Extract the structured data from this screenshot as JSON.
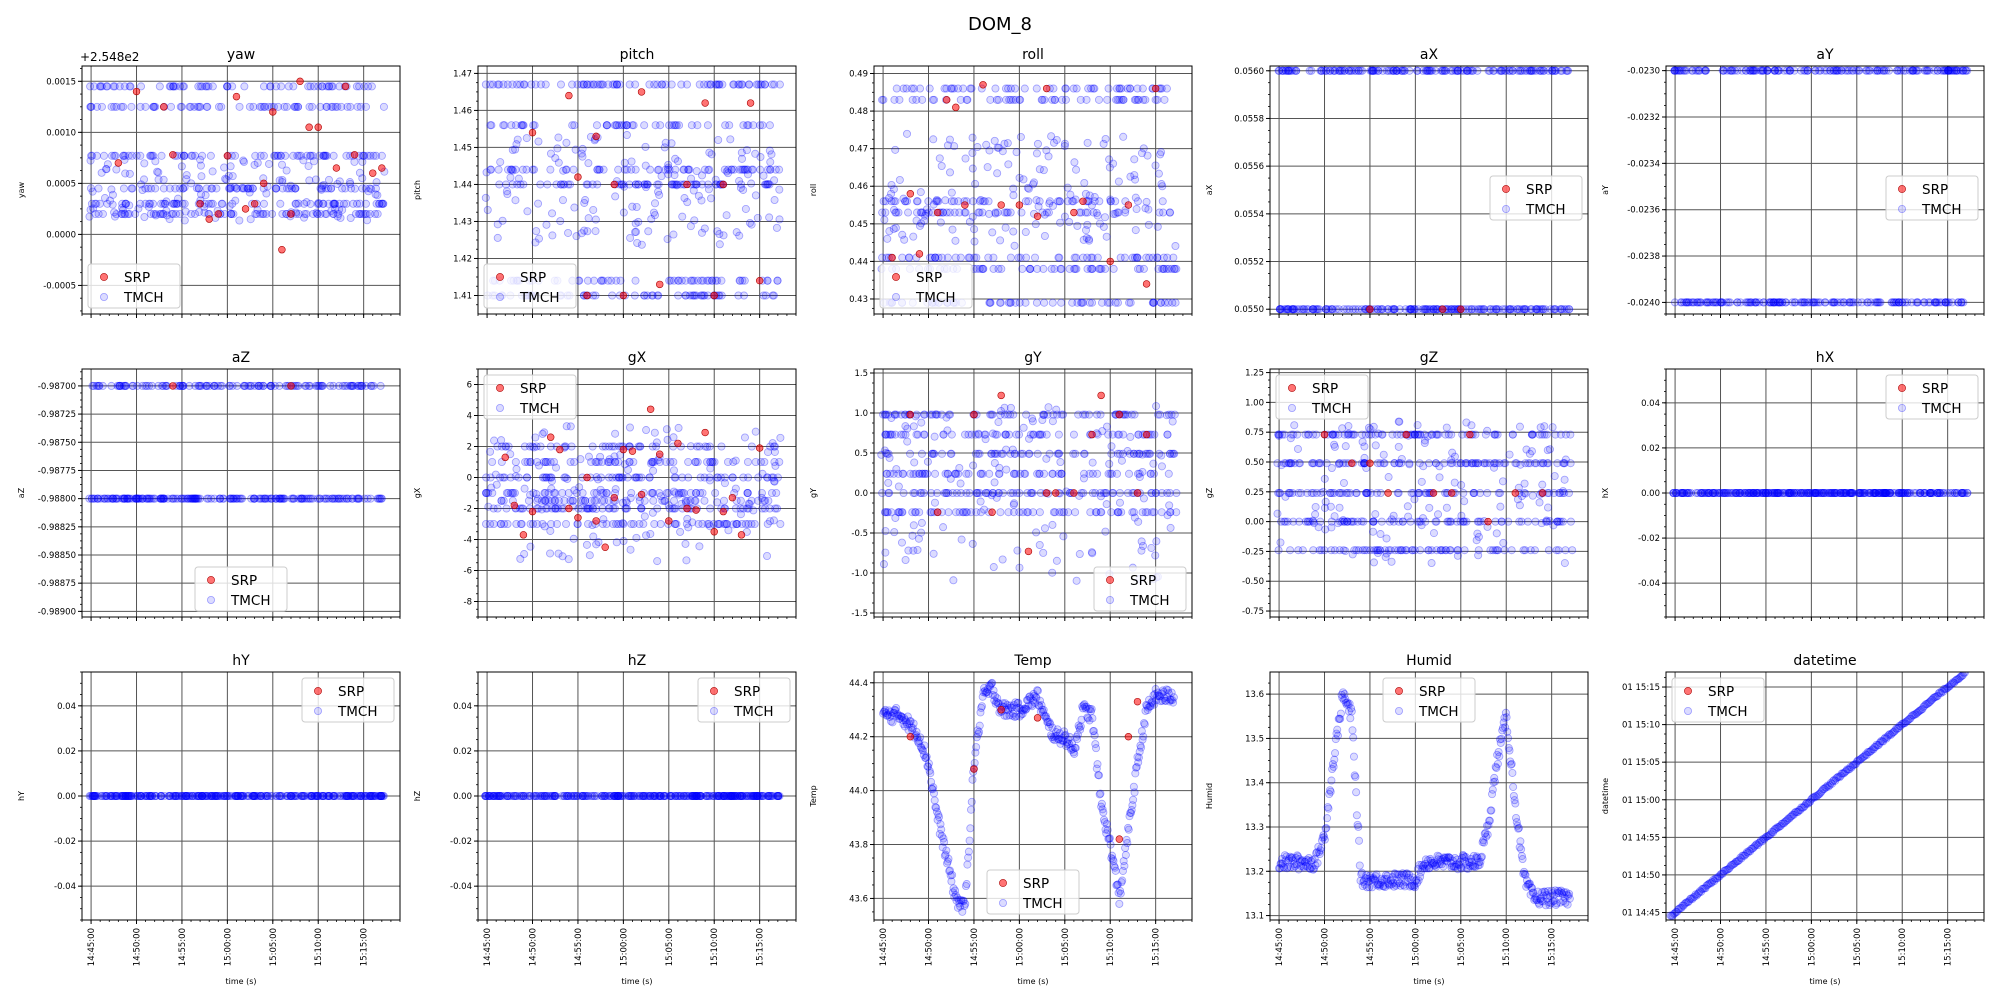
{
  "figure": {
    "title": "DOM_8"
  },
  "legend_labels": {
    "srp": "SRP",
    "tmch": "TMCH"
  },
  "colors": {
    "srp": "#ff0000",
    "tmch": "#0000ff",
    "grid": "#555555",
    "axis": "#000000"
  },
  "chart_data": [
    {
      "type": "scatter",
      "title": "yaw",
      "ylabel": "yaw",
      "ylim": [
        -0.00078,
        0.00165
      ],
      "yticks": [
        "-0.0005",
        "0.0000",
        "0.0005",
        "0.0010",
        "0.0015"
      ],
      "ytickvals": [
        -0.0005,
        0,
        0.0005,
        0.001,
        0.0015
      ],
      "offset_label": "+2.548e2",
      "legend": "lower-left",
      "levels": [
        0.00145,
        0.00125,
        0.00077,
        0.00045,
        0.0003,
        0.0002
      ],
      "noise": 0.0006,
      "srp": [
        {
          "x": 3,
          "y": 0.0007
        },
        {
          "x": 5,
          "y": 0.0014
        },
        {
          "x": 8,
          "y": 0.00125
        },
        {
          "x": 9,
          "y": 0.00078
        },
        {
          "x": 12,
          "y": 0.0003
        },
        {
          "x": 13,
          "y": 0.00015
        },
        {
          "x": 14,
          "y": 0.0002
        },
        {
          "x": 15,
          "y": 0.00077
        },
        {
          "x": 16,
          "y": 0.00135
        },
        {
          "x": 17,
          "y": 0.00025
        },
        {
          "x": 18,
          "y": 0.0003
        },
        {
          "x": 19,
          "y": 0.0005
        },
        {
          "x": 20,
          "y": 0.0012
        },
        {
          "x": 21,
          "y": -0.00015
        },
        {
          "x": 22,
          "y": 0.0002
        },
        {
          "x": 23,
          "y": 0.0015
        },
        {
          "x": 24,
          "y": 0.00105
        },
        {
          "x": 25,
          "y": 0.00105
        },
        {
          "x": 27,
          "y": 0.00065
        },
        {
          "x": 28,
          "y": 0.00145
        },
        {
          "x": 29,
          "y": 0.00078
        },
        {
          "x": 31,
          "y": 0.0006
        },
        {
          "x": 32,
          "y": 0.00065
        }
      ]
    },
    {
      "type": "scatter",
      "title": "pitch",
      "ylabel": "pitch",
      "ylim": [
        1.405,
        1.472
      ],
      "yticks": [
        "1.41",
        "1.42",
        "1.43",
        "1.44",
        "1.45",
        "1.46",
        "1.47"
      ],
      "ytickvals": [
        1.41,
        1.42,
        1.43,
        1.44,
        1.45,
        1.46,
        1.47
      ],
      "legend": "lower-left",
      "levels": [
        1.467,
        1.456,
        1.444,
        1.44,
        1.414,
        1.41
      ],
      "noise": 0.03,
      "srp": [
        {
          "x": 5,
          "y": 1.454
        },
        {
          "x": 9,
          "y": 1.464
        },
        {
          "x": 10,
          "y": 1.442
        },
        {
          "x": 11,
          "y": 1.41
        },
        {
          "x": 12,
          "y": 1.453
        },
        {
          "x": 14,
          "y": 1.44
        },
        {
          "x": 15,
          "y": 1.41
        },
        {
          "x": 17,
          "y": 1.465
        },
        {
          "x": 19,
          "y": 1.413
        },
        {
          "x": 22,
          "y": 1.44
        },
        {
          "x": 24,
          "y": 1.462
        },
        {
          "x": 25,
          "y": 1.41
        },
        {
          "x": 26,
          "y": 1.44
        },
        {
          "x": 29,
          "y": 1.462
        },
        {
          "x": 30,
          "y": 1.414
        }
      ]
    },
    {
      "type": "scatter",
      "title": "roll",
      "ylabel": "roll",
      "ylim": [
        0.426,
        0.492
      ],
      "yticks": [
        "0.43",
        "0.44",
        "0.45",
        "0.46",
        "0.47",
        "0.48",
        "0.49"
      ],
      "ytickvals": [
        0.43,
        0.44,
        0.45,
        0.46,
        0.47,
        0.48,
        0.49
      ],
      "legend": "lower-left",
      "levels": [
        0.486,
        0.483,
        0.456,
        0.453,
        0.441,
        0.438,
        0.429
      ],
      "noise": 0.03,
      "srp": [
        {
          "x": 1,
          "y": 0.441
        },
        {
          "x": 3,
          "y": 0.458
        },
        {
          "x": 4,
          "y": 0.442
        },
        {
          "x": 6,
          "y": 0.453
        },
        {
          "x": 7,
          "y": 0.483
        },
        {
          "x": 8,
          "y": 0.481
        },
        {
          "x": 9,
          "y": 0.455
        },
        {
          "x": 11,
          "y": 0.487
        },
        {
          "x": 13,
          "y": 0.455
        },
        {
          "x": 15,
          "y": 0.455
        },
        {
          "x": 17,
          "y": 0.452
        },
        {
          "x": 18,
          "y": 0.486
        },
        {
          "x": 21,
          "y": 0.453
        },
        {
          "x": 22,
          "y": 0.456
        },
        {
          "x": 25,
          "y": 0.44
        },
        {
          "x": 27,
          "y": 0.455
        },
        {
          "x": 29,
          "y": 0.434
        },
        {
          "x": 30,
          "y": 0.486
        }
      ]
    },
    {
      "type": "scatter",
      "title": "aX",
      "ylabel": "aX",
      "ylim": [
        0.05498,
        0.05602
      ],
      "yticks": [
        "0.0550",
        "0.0552",
        "0.0554",
        "0.0556",
        "0.0558",
        "0.0560"
      ],
      "ytickvals": [
        0.055,
        0.0552,
        0.0554,
        0.0556,
        0.0558,
        0.056
      ],
      "legend": "right",
      "levels": [
        0.056,
        0.055
      ],
      "noise": 0,
      "srp": [
        {
          "x": 10,
          "y": 0.055
        },
        {
          "x": 18,
          "y": 0.055
        },
        {
          "x": 20,
          "y": 0.055
        }
      ]
    },
    {
      "type": "scatter",
      "title": "aY",
      "ylabel": "aY",
      "ylim": [
        -0.02405,
        -0.02298
      ],
      "yticks": [
        "-0.0240",
        "-0.0238",
        "-0.0236",
        "-0.0234",
        "-0.0232",
        "-0.0230"
      ],
      "ytickvals": [
        -0.024,
        -0.0238,
        -0.0236,
        -0.0234,
        -0.0232,
        -0.023
      ],
      "legend": "right",
      "levels": [
        -0.023,
        -0.024
      ],
      "noise": 0,
      "srp": []
    },
    {
      "type": "scatter",
      "title": "aZ",
      "ylabel": "aZ",
      "ylim": [
        -0.98905,
        -0.98685
      ],
      "yticks": [
        "-0.98900",
        "-0.98875",
        "-0.98850",
        "-0.98825",
        "-0.98800",
        "-0.98775",
        "-0.98750",
        "-0.98725",
        "-0.98700"
      ],
      "ytickvals": [
        -0.989,
        -0.98875,
        -0.9885,
        -0.98825,
        -0.988,
        -0.98775,
        -0.9875,
        -0.98725,
        -0.987
      ],
      "legend": "lower-center",
      "levels": [
        -0.987,
        -0.988,
        -0.988
      ],
      "noise": 0,
      "srp": [
        {
          "x": 9,
          "y": -0.987
        },
        {
          "x": 22,
          "y": -0.987
        }
      ]
    },
    {
      "type": "scatter",
      "title": "gX",
      "ylabel": "gX",
      "ylim": [
        -9,
        7
      ],
      "yticks": [
        "-8",
        "-6",
        "-4",
        "-2",
        "0",
        "2",
        "4",
        "6"
      ],
      "ytickvals": [
        -8,
        -6,
        -4,
        -2,
        0,
        2,
        4,
        6
      ],
      "legend": "upper-left",
      "levels": [
        2,
        1,
        0,
        -1,
        -2,
        -3,
        -1.5
      ],
      "noise": 9,
      "srp": [
        {
          "x": 2,
          "y": 1.3
        },
        {
          "x": 3,
          "y": -1.8
        },
        {
          "x": 4,
          "y": -3.7
        },
        {
          "x": 5,
          "y": -2.2
        },
        {
          "x": 7,
          "y": 2.6
        },
        {
          "x": 8,
          "y": 1.8
        },
        {
          "x": 9,
          "y": -2
        },
        {
          "x": 10,
          "y": -2.6
        },
        {
          "x": 11,
          "y": 0
        },
        {
          "x": 12,
          "y": -2.8
        },
        {
          "x": 13,
          "y": -4.5
        },
        {
          "x": 14,
          "y": -1.3
        },
        {
          "x": 15,
          "y": 1.8
        },
        {
          "x": 16,
          "y": 1.7
        },
        {
          "x": 17,
          "y": -1.1
        },
        {
          "x": 18,
          "y": 4.4
        },
        {
          "x": 19,
          "y": 1.5
        },
        {
          "x": 20,
          "y": -2.8
        },
        {
          "x": 21,
          "y": 2.2
        },
        {
          "x": 22,
          "y": -2
        },
        {
          "x": 23,
          "y": -2.1
        },
        {
          "x": 24,
          "y": 2.9
        },
        {
          "x": 25,
          "y": -3.5
        },
        {
          "x": 26,
          "y": -2.2
        },
        {
          "x": 27,
          "y": -1.3
        },
        {
          "x": 28,
          "y": -3.7
        },
        {
          "x": 30,
          "y": 1.9
        }
      ]
    },
    {
      "type": "scatter",
      "title": "gY",
      "ylabel": "gY",
      "ylim": [
        -1.55,
        1.55
      ],
      "yticks": [
        "-1.5",
        "-1.0",
        "-0.5",
        "0.0",
        "0.5",
        "1.0",
        "1.5"
      ],
      "ytickvals": [
        -1.5,
        -1,
        -0.5,
        0,
        0.5,
        1,
        1.5
      ],
      "legend": "lower-right",
      "levels": [
        0.98,
        0.73,
        0.49,
        0.24,
        0,
        -0.24
      ],
      "noise": 2.2,
      "srp": [
        {
          "x": 3,
          "y": 0.98
        },
        {
          "x": 6,
          "y": -0.24
        },
        {
          "x": 10,
          "y": 0.98
        },
        {
          "x": 12,
          "y": -0.24
        },
        {
          "x": 13,
          "y": 1.22
        },
        {
          "x": 16,
          "y": -0.73
        },
        {
          "x": 18,
          "y": 0
        },
        {
          "x": 19,
          "y": 0
        },
        {
          "x": 21,
          "y": 0
        },
        {
          "x": 23,
          "y": 0.73
        },
        {
          "x": 24,
          "y": 1.22
        },
        {
          "x": 26,
          "y": 0.98
        },
        {
          "x": 28,
          "y": 0
        },
        {
          "x": 29,
          "y": 0.73
        }
      ]
    },
    {
      "type": "scatter",
      "title": "gZ",
      "ylabel": "gZ",
      "ylim": [
        -0.8,
        1.28
      ],
      "yticks": [
        "-0.75",
        "-0.50",
        "-0.25",
        "0.00",
        "0.25",
        "0.50",
        "0.75",
        "1.00",
        "1.25"
      ],
      "ytickvals": [
        -0.75,
        -0.5,
        -0.25,
        0,
        0.25,
        0.5,
        0.75,
        1,
        1.25
      ],
      "legend": "upper-left",
      "levels": [
        0.73,
        0.49,
        0.24,
        0,
        -0.24
      ],
      "noise": 1.2,
      "srp": [
        {
          "x": 5,
          "y": 0.73
        },
        {
          "x": 8,
          "y": 0.49
        },
        {
          "x": 10,
          "y": 0.49
        },
        {
          "x": 12,
          "y": 0.24
        },
        {
          "x": 14,
          "y": 0.73
        },
        {
          "x": 17,
          "y": 0.24
        },
        {
          "x": 19,
          "y": 0.24
        },
        {
          "x": 21,
          "y": 0.73
        },
        {
          "x": 23,
          "y": 0
        },
        {
          "x": 26,
          "y": 0.24
        },
        {
          "x": 29,
          "y": 0.24
        }
      ]
    },
    {
      "type": "scatter",
      "title": "hX",
      "ylabel": "hX",
      "ylim": [
        -0.055,
        0.055
      ],
      "yticks": [
        "-0.04",
        "-0.02",
        "0.00",
        "0.02",
        "0.04"
      ],
      "ytickvals": [
        -0.04,
        -0.02,
        0,
        0.02,
        0.04
      ],
      "legend": "upper-right",
      "levels": [
        0
      ],
      "noise": 0,
      "srp": []
    },
    {
      "type": "scatter",
      "title": "hY",
      "ylabel": "hY",
      "ylim": [
        -0.055,
        0.055
      ],
      "yticks": [
        "-0.04",
        "-0.02",
        "0.00",
        "0.02",
        "0.04"
      ],
      "ytickvals": [
        -0.04,
        -0.02,
        0,
        0.02,
        0.04
      ],
      "legend": "upper-right",
      "levels": [
        0
      ],
      "noise": 0,
      "srp": [],
      "xlabel": "time (s)"
    },
    {
      "type": "scatter",
      "title": "hZ",
      "ylabel": "hZ",
      "ylim": [
        -0.055,
        0.055
      ],
      "yticks": [
        "-0.04",
        "-0.02",
        "0.00",
        "0.02",
        "0.04"
      ],
      "ytickvals": [
        -0.04,
        -0.02,
        0,
        0.02,
        0.04
      ],
      "legend": "upper-right",
      "levels": [
        0
      ],
      "noise": 0,
      "srp": [],
      "xlabel": "time (s)"
    },
    {
      "type": "scatter",
      "title": "Temp",
      "ylabel": "Temp",
      "ylim": [
        43.52,
        44.44
      ],
      "yticks": [
        "43.6",
        "43.8",
        "44.0",
        "44.2",
        "44.4"
      ],
      "ytickvals": [
        43.6,
        43.8,
        44.0,
        44.2,
        44.4
      ],
      "legend": "lower-center",
      "profile": [
        [
          0,
          44.28
        ],
        [
          2,
          44.28
        ],
        [
          4,
          44.2
        ],
        [
          5,
          44.1
        ],
        [
          6,
          43.9
        ],
        [
          7,
          43.75
        ],
        [
          8,
          43.6
        ],
        [
          9,
          43.56
        ],
        [
          10,
          44.1
        ],
        [
          11,
          44.35
        ],
        [
          12,
          44.38
        ],
        [
          13,
          44.3
        ],
        [
          15,
          44.3
        ],
        [
          17,
          44.35
        ],
        [
          18,
          44.25
        ],
        [
          19,
          44.2
        ],
        [
          20,
          44.2
        ],
        [
          21,
          44.15
        ],
        [
          22,
          44.3
        ],
        [
          23,
          44.28
        ],
        [
          24,
          43.95
        ],
        [
          25,
          43.8
        ],
        [
          26,
          43.6
        ],
        [
          27,
          43.85
        ],
        [
          28,
          44.1
        ],
        [
          29,
          44.3
        ],
        [
          30,
          44.35
        ]
      ],
      "srp": [
        {
          "x": 3,
          "y": 44.2
        },
        {
          "x": 10,
          "y": 44.08
        },
        {
          "x": 13,
          "y": 44.3
        },
        {
          "x": 17,
          "y": 44.27
        },
        {
          "x": 26,
          "y": 43.82
        },
        {
          "x": 27,
          "y": 44.2
        },
        {
          "x": 28,
          "y": 44.33
        }
      ],
      "xlabel": "time (s)"
    },
    {
      "type": "scatter",
      "title": "Humid",
      "ylabel": "Humid",
      "ylim": [
        13.09,
        13.65
      ],
      "yticks": [
        "13.1",
        "13.2",
        "13.3",
        "13.4",
        "13.5",
        "13.6"
      ],
      "ytickvals": [
        13.1,
        13.2,
        13.3,
        13.4,
        13.5,
        13.6
      ],
      "legend": "upper-center",
      "profile": [
        [
          0,
          13.22
        ],
        [
          4,
          13.22
        ],
        [
          5,
          13.28
        ],
        [
          6,
          13.45
        ],
        [
          7,
          13.6
        ],
        [
          8,
          13.55
        ],
        [
          9,
          13.18
        ],
        [
          15,
          13.18
        ],
        [
          16,
          13.22
        ],
        [
          22,
          13.22
        ],
        [
          23,
          13.3
        ],
        [
          24,
          13.45
        ],
        [
          25,
          13.55
        ],
        [
          26,
          13.35
        ],
        [
          27,
          13.18
        ],
        [
          28,
          13.14
        ]
      ],
      "srp": [],
      "xlabel": "time (s)"
    },
    {
      "type": "scatter",
      "title": "datetime",
      "ylabel": "datetime",
      "ylim": [
        -1,
        32
      ],
      "yticks": [
        "01 14:45",
        "01 14:50",
        "01 14:55",
        "01 15:00",
        "01 15:05",
        "01 15:10",
        "01 15:15"
      ],
      "ytickvals": [
        0,
        5,
        10,
        15,
        20,
        25,
        30
      ],
      "legend": "upper-left",
      "diagonal": true,
      "srp": [],
      "xlabel": "time (s)"
    }
  ],
  "x_axis": {
    "min_minutes": -1,
    "max_minutes": 34,
    "tick_labels": [
      "14:45:00",
      "14:50:00",
      "14:55:00",
      "15:00:00",
      "15:05:00",
      "15:10:00",
      "15:15:00"
    ],
    "tick_minutes": [
      0,
      5,
      10,
      15,
      20,
      25,
      30
    ],
    "data_end_minutes": 32,
    "xlabel": "time (s)"
  }
}
